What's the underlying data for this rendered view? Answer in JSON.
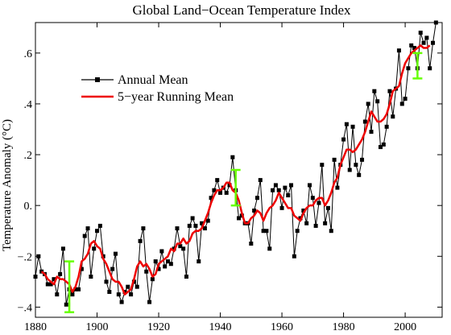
{
  "chart_data": {
    "type": "line",
    "title": "Global Land−Ocean Temperature Index",
    "xlabel": "",
    "ylabel": "Temperature Anomaly (°C)",
    "xlim": [
      1880,
      2012
    ],
    "ylim": [
      -0.44,
      0.72
    ],
    "x_ticks": [
      1880,
      1900,
      1920,
      1940,
      1960,
      1980,
      2000
    ],
    "x_tick_labels": [
      "1880",
      "1900",
      "1920",
      "1940",
      "1960",
      "1980",
      "2000"
    ],
    "y_ticks": [
      -0.4,
      -0.2,
      0.0,
      0.2,
      0.4,
      0.6
    ],
    "y_tick_labels": [
      "−.4",
      "−.2",
      "0.",
      ".2",
      ".4",
      ".6"
    ],
    "grid": false,
    "legend_position": "upper-left",
    "series": [
      {
        "name": "Annual Mean",
        "color": "#000000",
        "marker": "square",
        "x": [
          1880,
          1881,
          1882,
          1883,
          1884,
          1885,
          1886,
          1887,
          1888,
          1889,
          1890,
          1891,
          1892,
          1893,
          1894,
          1895,
          1896,
          1897,
          1898,
          1899,
          1900,
          1901,
          1902,
          1903,
          1904,
          1905,
          1906,
          1907,
          1908,
          1909,
          1910,
          1911,
          1912,
          1913,
          1914,
          1915,
          1916,
          1917,
          1918,
          1919,
          1920,
          1921,
          1922,
          1923,
          1924,
          1925,
          1926,
          1927,
          1928,
          1929,
          1930,
          1931,
          1932,
          1933,
          1934,
          1935,
          1936,
          1937,
          1938,
          1939,
          1940,
          1941,
          1942,
          1943,
          1944,
          1945,
          1946,
          1947,
          1948,
          1949,
          1950,
          1951,
          1952,
          1953,
          1954,
          1955,
          1956,
          1957,
          1958,
          1959,
          1960,
          1961,
          1962,
          1963,
          1964,
          1965,
          1966,
          1967,
          1968,
          1969,
          1970,
          1971,
          1972,
          1973,
          1974,
          1975,
          1976,
          1977,
          1978,
          1979,
          1980,
          1981,
          1982,
          1983,
          1984,
          1985,
          1986,
          1987,
          1988,
          1989,
          1990,
          1991,
          1992,
          1993,
          1994,
          1995,
          1996,
          1997,
          1998,
          1999,
          2000,
          2001,
          2002,
          2003,
          2004,
          2005,
          2006,
          2007,
          2008,
          2009,
          2010
        ],
        "values": [
          -0.28,
          -0.2,
          -0.26,
          -0.27,
          -0.31,
          -0.31,
          -0.29,
          -0.35,
          -0.27,
          -0.17,
          -0.39,
          -0.33,
          -0.35,
          -0.33,
          -0.33,
          -0.25,
          -0.12,
          -0.09,
          -0.28,
          -0.17,
          -0.1,
          -0.08,
          -0.2,
          -0.3,
          -0.34,
          -0.25,
          -0.19,
          -0.35,
          -0.38,
          -0.34,
          -0.32,
          -0.35,
          -0.3,
          -0.32,
          -0.14,
          -0.09,
          -0.26,
          -0.38,
          -0.29,
          -0.22,
          -0.25,
          -0.18,
          -0.24,
          -0.22,
          -0.23,
          -0.17,
          -0.09,
          -0.16,
          -0.17,
          -0.28,
          -0.08,
          -0.05,
          -0.08,
          -0.22,
          -0.07,
          -0.09,
          -0.06,
          0.03,
          0.06,
          0.1,
          0.05,
          0.07,
          0.05,
          0.08,
          0.19,
          0.06,
          -0.05,
          -0.04,
          -0.07,
          -0.07,
          -0.15,
          -0.02,
          0.03,
          0.1,
          -0.1,
          -0.1,
          -0.17,
          0.06,
          0.08,
          0.06,
          -0.01,
          0.07,
          0.04,
          0.08,
          -0.2,
          -0.1,
          -0.05,
          -0.02,
          -0.07,
          0.08,
          0.03,
          -0.08,
          0.01,
          0.16,
          -0.07,
          -0.01,
          -0.1,
          0.18,
          0.07,
          0.16,
          0.26,
          0.32,
          0.14,
          0.31,
          0.16,
          0.12,
          0.18,
          0.33,
          0.4,
          0.29,
          0.45,
          0.41,
          0.23,
          0.24,
          0.31,
          0.45,
          0.35,
          0.46,
          0.61,
          0.4,
          0.42,
          0.54,
          0.63,
          0.62,
          0.54,
          0.68,
          0.64,
          0.66,
          0.54,
          0.64,
          0.72
        ]
      },
      {
        "name": "5−year Running Mean",
        "color": "#ee0000",
        "marker": "none",
        "x": [
          1882,
          1883,
          1884,
          1885,
          1886,
          1887,
          1888,
          1889,
          1890,
          1891,
          1892,
          1893,
          1894,
          1895,
          1896,
          1897,
          1898,
          1899,
          1900,
          1901,
          1902,
          1903,
          1904,
          1905,
          1906,
          1907,
          1908,
          1909,
          1910,
          1911,
          1912,
          1913,
          1914,
          1915,
          1916,
          1917,
          1918,
          1919,
          1920,
          1921,
          1922,
          1923,
          1924,
          1925,
          1926,
          1927,
          1928,
          1929,
          1930,
          1931,
          1932,
          1933,
          1934,
          1935,
          1936,
          1937,
          1938,
          1939,
          1940,
          1941,
          1942,
          1943,
          1944,
          1945,
          1946,
          1947,
          1948,
          1949,
          1950,
          1951,
          1952,
          1953,
          1954,
          1955,
          1956,
          1957,
          1958,
          1959,
          1960,
          1961,
          1962,
          1963,
          1964,
          1965,
          1966,
          1967,
          1968,
          1969,
          1970,
          1971,
          1972,
          1973,
          1974,
          1975,
          1976,
          1977,
          1978,
          1979,
          1980,
          1981,
          1982,
          1983,
          1984,
          1985,
          1986,
          1987,
          1988,
          1989,
          1990,
          1991,
          1992,
          1993,
          1994,
          1995,
          1996,
          1997,
          1998,
          1999,
          2000,
          2001,
          2002,
          2003,
          2004,
          2005,
          2006,
          2007,
          2008
        ],
        "values": [
          -0.26,
          -0.27,
          -0.29,
          -0.3,
          -0.31,
          -0.28,
          -0.29,
          -0.29,
          -0.3,
          -0.31,
          -0.34,
          -0.32,
          -0.28,
          -0.22,
          -0.21,
          -0.19,
          -0.15,
          -0.14,
          -0.16,
          -0.17,
          -0.21,
          -0.23,
          -0.26,
          -0.29,
          -0.3,
          -0.3,
          -0.32,
          -0.35,
          -0.34,
          -0.33,
          -0.29,
          -0.24,
          -0.22,
          -0.24,
          -0.23,
          -0.25,
          -0.28,
          -0.27,
          -0.23,
          -0.22,
          -0.21,
          -0.2,
          -0.17,
          -0.18,
          -0.15,
          -0.15,
          -0.13,
          -0.15,
          -0.14,
          -0.11,
          -0.1,
          -0.1,
          -0.09,
          -0.06,
          -0.03,
          0.01,
          0.04,
          0.06,
          0.06,
          0.07,
          0.09,
          0.09,
          0.06,
          0.05,
          0.02,
          -0.03,
          -0.07,
          -0.07,
          -0.05,
          -0.04,
          -0.02,
          -0.03,
          -0.06,
          -0.03,
          -0.01,
          0.0,
          0.02,
          0.05,
          0.03,
          0.01,
          -0.01,
          -0.01,
          -0.04,
          -0.05,
          -0.06,
          -0.03,
          -0.01,
          0.0,
          0.0,
          0.02,
          0.03,
          0.03,
          0.0,
          0.02,
          0.05,
          0.09,
          0.11,
          0.16,
          0.19,
          0.22,
          0.22,
          0.21,
          0.22,
          0.24,
          0.26,
          0.29,
          0.33,
          0.37,
          0.35,
          0.33,
          0.33,
          0.34,
          0.36,
          0.4,
          0.45,
          0.46,
          0.47,
          0.52,
          0.56,
          0.58,
          0.6,
          0.61,
          0.62,
          0.63,
          0.62,
          0.62,
          0.63
        ]
      }
    ],
    "error_bars": [
      {
        "x": 1891,
        "low": -0.42,
        "high": -0.22,
        "color": "#66ff00"
      },
      {
        "x": 1945,
        "low": 0.0,
        "high": 0.14,
        "color": "#66ff00"
      },
      {
        "x": 2004,
        "low": 0.5,
        "high": 0.6,
        "color": "#66ff00"
      }
    ]
  }
}
